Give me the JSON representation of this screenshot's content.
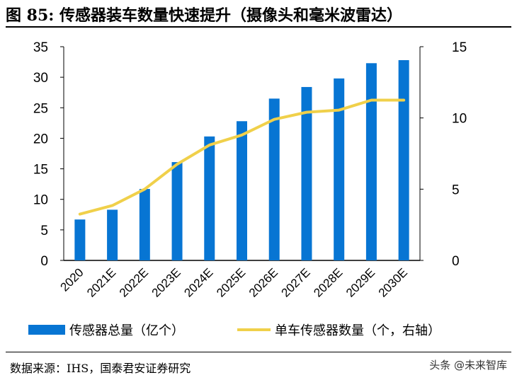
{
  "title": "图  85: 传感器装车数量快速提升（摄像头和毫米波雷达）",
  "source": "数据来源：IHS，国泰君安证券研究",
  "watermark": "头条 @未来智库",
  "chart_data": {
    "type": "bar+line",
    "categories": [
      "2020",
      "2021E",
      "2022E",
      "2023E",
      "2024E",
      "2025E",
      "2026E",
      "2027E",
      "2028E",
      "2029E",
      "2030E"
    ],
    "series": [
      {
        "name": "传感器总量（亿个）",
        "type": "bar",
        "axis": "left",
        "color": "#0775D3",
        "values": [
          6.7,
          8.3,
          11.7,
          16.1,
          20.3,
          22.8,
          26.5,
          28.4,
          29.8,
          32.3,
          32.8
        ]
      },
      {
        "name": "单车传感器数量（个，右轴）",
        "type": "line",
        "axis": "right",
        "color": "#F0D04A",
        "values": [
          3.25,
          3.85,
          5.0,
          6.75,
          8.1,
          8.8,
          9.9,
          10.4,
          10.55,
          11.25,
          11.25
        ]
      }
    ],
    "ylim_left": [
      0,
      35
    ],
    "yticks_left": [
      "0",
      "5",
      "10",
      "15",
      "20",
      "25",
      "30",
      "35"
    ],
    "ylim_right": [
      0,
      15
    ],
    "yticks_right": [
      "0",
      "5",
      "10",
      "15"
    ],
    "grid": false,
    "legend": "bottom"
  }
}
